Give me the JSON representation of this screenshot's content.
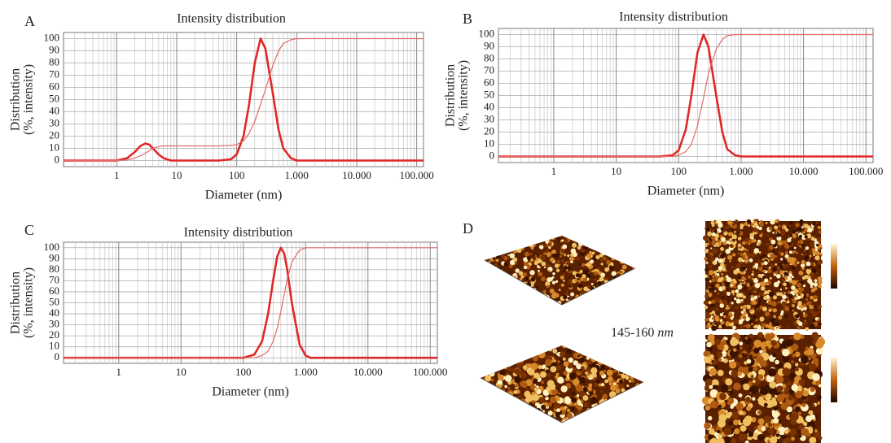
{
  "chart_data": [
    {
      "type": "line",
      "panel": "A",
      "title": "Intensity distribution",
      "xlabel": "Diameter (nm)",
      "ylabel": [
        "Distribution",
        "(%, intensity)"
      ],
      "log_x": true,
      "minor_grid": true,
      "grid": true,
      "xlim": [
        0.13,
        130000
      ],
      "ylim": [
        -5,
        105
      ],
      "xticks": [
        1,
        10,
        100,
        {
          "value": 1000,
          "label": "1.000"
        },
        {
          "value": 10000,
          "label": "10.000"
        },
        {
          "value": 100000,
          "label": "100.000"
        }
      ],
      "yticks": [
        0,
        10,
        20,
        30,
        40,
        50,
        60,
        70,
        80,
        90,
        100
      ],
      "x": [
        0.13,
        1,
        1.5,
        2,
        2.5,
        3,
        3.5,
        4,
        5,
        6,
        8,
        10,
        20,
        50,
        80,
        100,
        130,
        160,
        200,
        250,
        300,
        400,
        500,
        600,
        800,
        1000,
        2000,
        130000
      ],
      "series": [
        {
          "color": "#e02828",
          "line_width": 2.6,
          "values": [
            0,
            0,
            2,
            7,
            12,
            14,
            13,
            10,
            5,
            2,
            0,
            0,
            0,
            0,
            1,
            5,
            20,
            45,
            80,
            100,
            92,
            55,
            25,
            10,
            2,
            0,
            0,
            0
          ]
        },
        {
          "color": "#e46a6a",
          "line_width": 1.2,
          "values": [
            0,
            0,
            0.5,
            2,
            4,
            6,
            8,
            10,
            11.5,
            12,
            12,
            12,
            12,
            12,
            12.5,
            13,
            16,
            22,
            32,
            46,
            58,
            78,
            90,
            96,
            99,
            100,
            100,
            100
          ]
        }
      ]
    },
    {
      "type": "line",
      "panel": "B",
      "title": "Intensity distribution",
      "xlabel": "Diameter (nm)",
      "ylabel": [
        "Distribution",
        "(%, intensity)"
      ],
      "log_x": true,
      "minor_grid": true,
      "grid": true,
      "xlim": [
        0.13,
        130000
      ],
      "ylim": [
        -5,
        105
      ],
      "xticks": [
        1,
        10,
        100,
        {
          "value": 1000,
          "label": "1.000"
        },
        {
          "value": 10000,
          "label": "10.000"
        },
        {
          "value": 100000,
          "label": "100.000"
        }
      ],
      "yticks": [
        0,
        10,
        20,
        30,
        40,
        50,
        60,
        70,
        80,
        90,
        100
      ],
      "x": [
        0.13,
        50,
        80,
        100,
        130,
        160,
        200,
        250,
        300,
        400,
        500,
        600,
        800,
        1000,
        130000
      ],
      "series": [
        {
          "color": "#e02828",
          "line_width": 2.6,
          "values": [
            0,
            0,
            1,
            5,
            22,
            50,
            85,
            100,
            90,
            50,
            20,
            6,
            1,
            0,
            0
          ]
        },
        {
          "color": "#e46a6a",
          "line_width": 1.2,
          "values": [
            0,
            0,
            0,
            1,
            4,
            10,
            25,
            48,
            68,
            88,
            96,
            99,
            100,
            100,
            100
          ]
        }
      ]
    },
    {
      "type": "line",
      "panel": "C",
      "title": "Intensity distribution",
      "xlabel": "Diameter (nm)",
      "ylabel": [
        "Distribution",
        "(%, intensity)"
      ],
      "log_x": true,
      "minor_grid": true,
      "grid": true,
      "xlim": [
        0.13,
        130000
      ],
      "ylim": [
        -5,
        105
      ],
      "xticks": [
        1,
        10,
        100,
        {
          "value": 1000,
          "label": "1.000"
        },
        {
          "value": 10000,
          "label": "10.000"
        },
        {
          "value": 100000,
          "label": "100.000"
        }
      ],
      "yticks": [
        0,
        10,
        20,
        30,
        40,
        50,
        60,
        70,
        80,
        90,
        100
      ],
      "x": [
        0.13,
        100,
        150,
        200,
        250,
        300,
        350,
        400,
        450,
        500,
        600,
        800,
        1000,
        1200,
        130000
      ],
      "series": [
        {
          "color": "#e02828",
          "line_width": 2.6,
          "values": [
            0,
            0,
            3,
            15,
            40,
            70,
            92,
            100,
            95,
            82,
            50,
            12,
            2,
            0,
            0
          ]
        },
        {
          "color": "#e46a6a",
          "line_width": 1.2,
          "values": [
            0,
            0,
            0,
            2,
            6,
            15,
            27,
            42,
            57,
            70,
            87,
            98,
            100,
            100,
            100
          ]
        }
      ]
    }
  ],
  "panel_d": {
    "label": "D",
    "size_range": "145-160",
    "size_unit": "nm"
  }
}
